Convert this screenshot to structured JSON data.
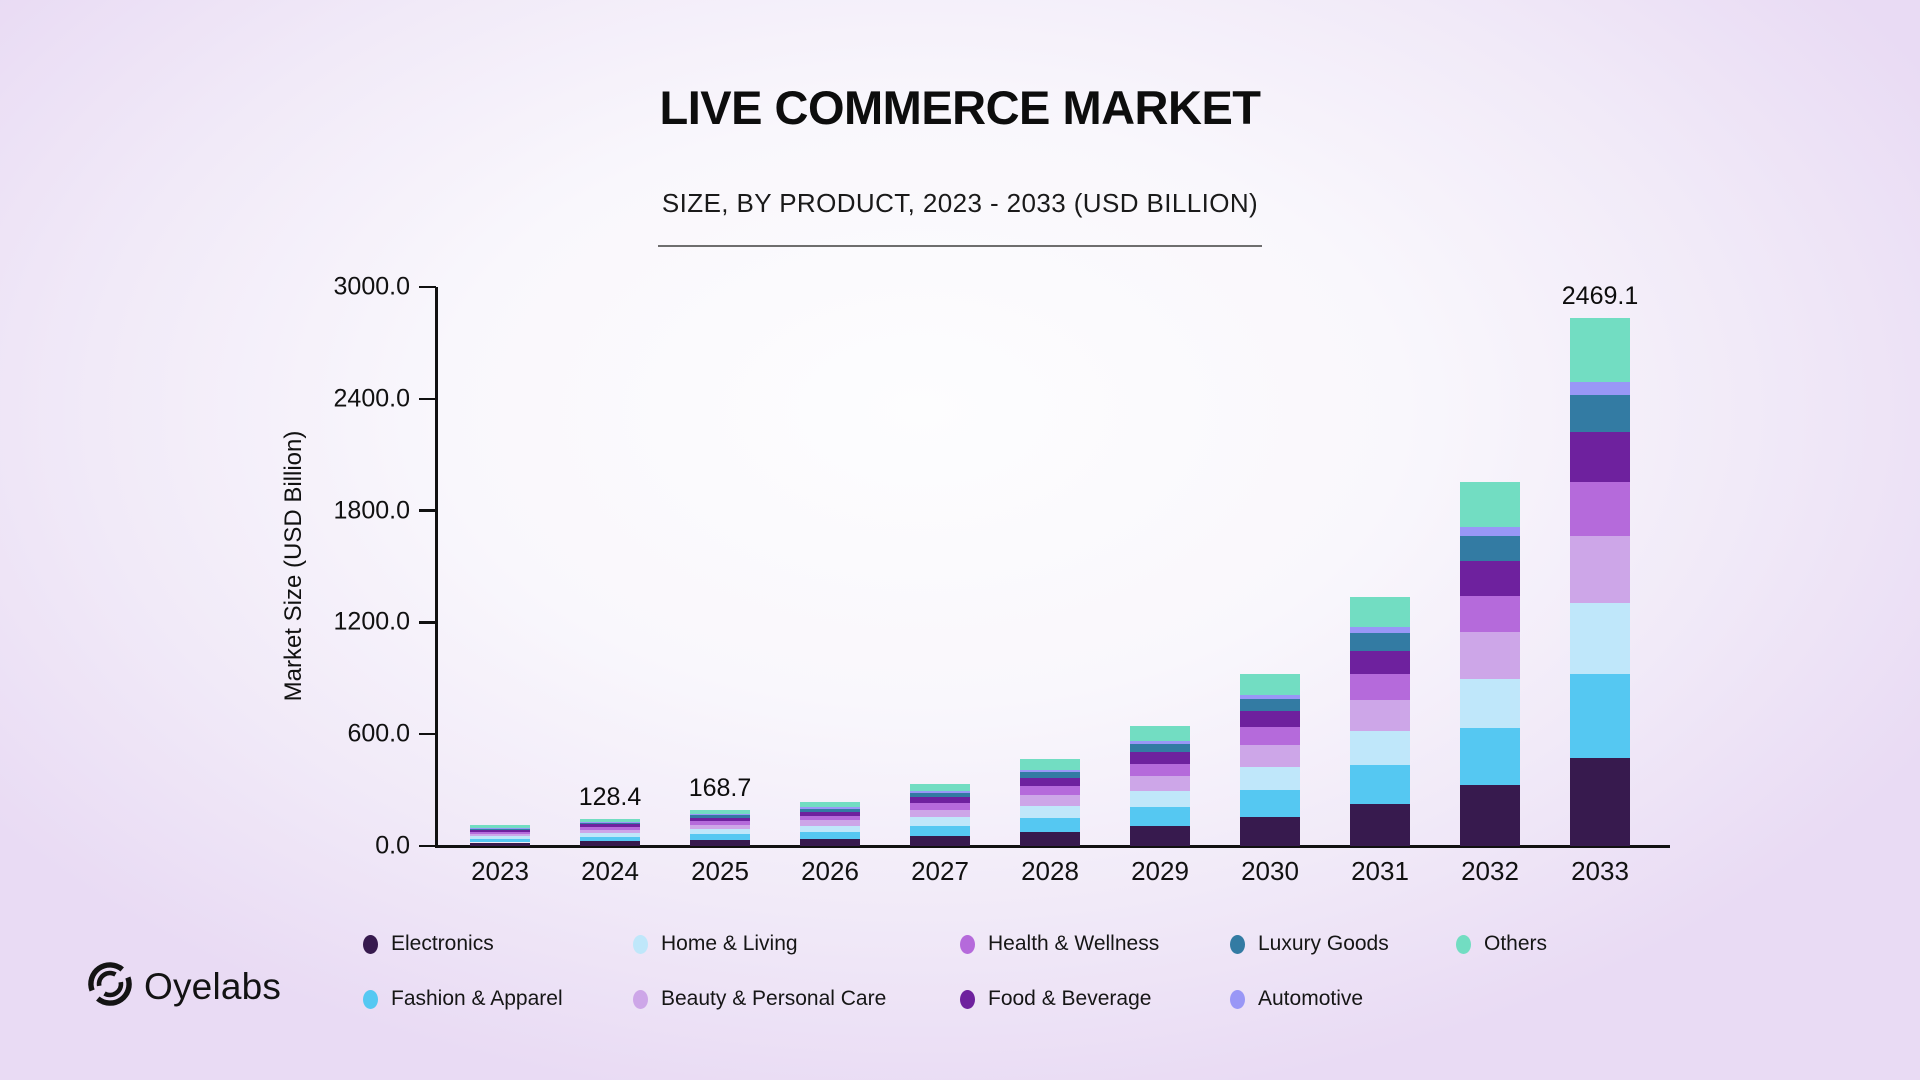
{
  "brand": {
    "logo_text": "Oyelabs"
  },
  "chart_data": {
    "type": "bar",
    "stacked": true,
    "title": "LIVE COMMERCE MARKET",
    "subtitle": "SIZE, BY PRODUCT, 2023 - 2033 (USD BILLION)",
    "grid": false,
    "legend_position": "bottom",
    "categories": [
      "2023",
      "2024",
      "2025",
      "2026",
      "2027",
      "2028",
      "2029",
      "2030",
      "2031",
      "2032",
      "2033"
    ],
    "y_axis": {
      "title": "Market Size (USD Billion)",
      "min": 0,
      "max": 3000,
      "ticks": [
        {
          "value": 0,
          "label": "0.0"
        },
        {
          "value": 600,
          "label": "600.0"
        },
        {
          "value": 1200,
          "label": "1200.0"
        },
        {
          "value": 1800,
          "label": "1800.0"
        },
        {
          "value": 2400,
          "label": "2400.0"
        },
        {
          "value": 3000,
          "label": "3000.0"
        }
      ]
    },
    "totals": [
      97.7,
      128.4,
      168.7,
      205.0,
      290.0,
      405.0,
      560.0,
      805.0,
      1165.0,
      1700.0,
      2469.1
    ],
    "bar_value_labels": [
      "",
      "128.4",
      "168.7",
      "",
      "",
      "",
      "",
      "",
      "",
      "",
      "2469.1"
    ],
    "series": [
      {
        "name": "Electronics",
        "color": "#371A4E",
        "values": [
          16.3,
          21.4,
          28.2,
          34.2,
          48.4,
          67.6,
          93.5,
          134.4,
          194.6,
          283.9,
          412.3
        ]
      },
      {
        "name": "Fashion & Apparel",
        "color": "#55C8F2",
        "values": [
          15.4,
          20.3,
          26.7,
          32.4,
          45.8,
          64.0,
          88.5,
          127.2,
          184.1,
          268.6,
          390.1
        ]
      },
      {
        "name": "Home & Living",
        "color": "#BFE7FA",
        "values": [
          13.2,
          17.3,
          22.8,
          27.7,
          39.2,
          54.7,
          75.6,
          108.7,
          157.3,
          229.5,
          333.3
        ]
      },
      {
        "name": "Beauty & Personal Care",
        "color": "#CDA6E8",
        "values": [
          12.4,
          16.3,
          21.4,
          26.0,
          36.8,
          51.4,
          71.1,
          102.2,
          148.0,
          215.9,
          313.6
        ]
      },
      {
        "name": "Health & Wellness",
        "color": "#B56ADB",
        "values": [
          9.9,
          13.0,
          17.0,
          20.7,
          29.3,
          40.9,
          56.6,
          81.3,
          117.7,
          171.7,
          249.4
        ]
      },
      {
        "name": "Food & Beverage",
        "color": "#6E219E",
        "values": [
          9.3,
          12.2,
          16.0,
          19.5,
          27.6,
          38.5,
          53.2,
          76.5,
          110.7,
          161.5,
          234.6
        ]
      },
      {
        "name": "Luxury Goods",
        "color": "#337BA3",
        "values": [
          6.8,
          9.0,
          11.8,
          14.4,
          20.3,
          28.4,
          39.2,
          56.4,
          81.6,
          119.0,
          172.8
        ]
      },
      {
        "name": "Automotive",
        "color": "#9997F6",
        "values": [
          2.4,
          3.2,
          4.2,
          5.1,
          7.3,
          10.1,
          14.0,
          20.1,
          29.1,
          42.5,
          61.7
        ]
      },
      {
        "name": "Others",
        "color": "#72DDC2",
        "values": [
          11.9,
          15.7,
          20.6,
          25.0,
          35.4,
          49.4,
          68.3,
          98.2,
          142.1,
          207.4,
          301.2
        ]
      }
    ],
    "legend_rows": [
      [
        "Electronics",
        "Home & Living",
        "Health & Wellness",
        "Luxury Goods",
        "Others"
      ],
      [
        "Fashion & Apparel",
        "Beauty & Personal Care",
        "Food & Beverage",
        "Automotive"
      ]
    ]
  }
}
